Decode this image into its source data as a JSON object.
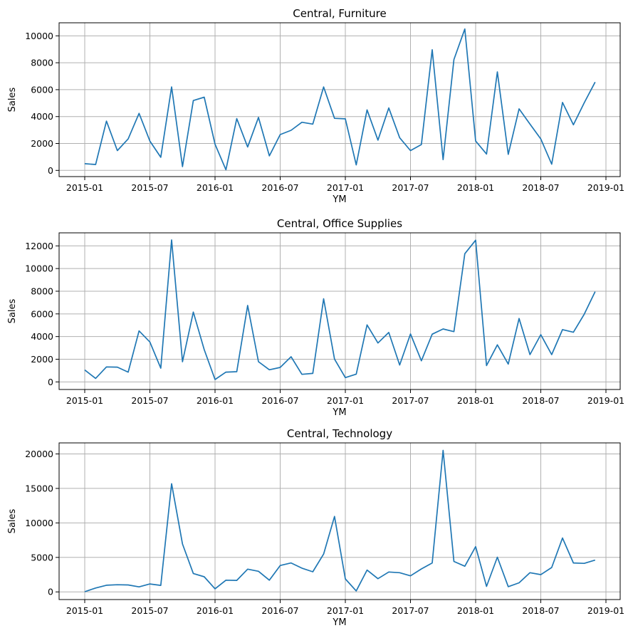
{
  "chart_data": [
    {
      "type": "line",
      "title": "Central, Furniture",
      "xlabel": "YM",
      "ylabel": "Sales",
      "grid": true,
      "line_color": "#1f77b4",
      "x_start": "2015-01",
      "x_end": "2018-12",
      "x_frequency": "monthly",
      "xticks": [
        "2015-01",
        "2015-07",
        "2016-01",
        "2016-07",
        "2017-01",
        "2017-07",
        "2018-01",
        "2018-07",
        "2019-01"
      ],
      "yticks": [
        0,
        2000,
        4000,
        6000,
        8000,
        10000
      ],
      "ylim": [
        -460,
        10970
      ],
      "values": [
        500,
        440,
        3660,
        1470,
        2340,
        4240,
        2180,
        975,
        6200,
        280,
        5190,
        5440,
        1950,
        50,
        3850,
        1740,
        3940,
        1080,
        2660,
        2980,
        3580,
        3440,
        6200,
        3870,
        3830,
        410,
        4500,
        2250,
        4640,
        2430,
        1470,
        1920,
        8970,
        800,
        8240,
        10510,
        2180,
        1220,
        7320,
        1190,
        4570,
        3440,
        2340,
        460,
        5050,
        3390,
        5020,
        6560
      ]
    },
    {
      "type": "line",
      "title": "Central, Office Supplies",
      "xlabel": "YM",
      "ylabel": "Sales",
      "grid": true,
      "line_color": "#1f77b4",
      "x_start": "2015-01",
      "x_end": "2018-12",
      "x_frequency": "monthly",
      "xticks": [
        "2015-01",
        "2015-07",
        "2016-01",
        "2016-07",
        "2017-01",
        "2017-07",
        "2018-01",
        "2018-07",
        "2019-01"
      ],
      "yticks": [
        0,
        2000,
        4000,
        6000,
        8000,
        10000,
        12000
      ],
      "ylim": [
        -670,
        13150
      ],
      "values": [
        1050,
        310,
        1320,
        1300,
        860,
        4500,
        3520,
        1210,
        12520,
        1780,
        6160,
        2850,
        210,
        860,
        900,
        6740,
        1780,
        1070,
        1280,
        2220,
        670,
        750,
        7330,
        2010,
        380,
        690,
        5030,
        3430,
        4360,
        1490,
        4230,
        1860,
        4210,
        4670,
        4440,
        11310,
        12500,
        1440,
        3270,
        1570,
        5590,
        2410,
        4170,
        2410,
        4610,
        4380,
        5970,
        7960
      ]
    },
    {
      "type": "line",
      "title": "Central, Technology",
      "xlabel": "YM",
      "ylabel": "Sales",
      "grid": true,
      "line_color": "#1f77b4",
      "x_start": "2015-01",
      "x_end": "2018-12",
      "x_frequency": "monthly",
      "xticks": [
        "2015-01",
        "2015-07",
        "2016-01",
        "2016-07",
        "2017-01",
        "2017-07",
        "2018-01",
        "2018-07",
        "2019-01"
      ],
      "yticks": [
        0,
        5000,
        10000,
        15000,
        20000
      ],
      "ylim": [
        -1110,
        21600
      ],
      "values": [
        30,
        560,
        970,
        1040,
        1010,
        730,
        1150,
        940,
        15690,
        6940,
        2670,
        2190,
        450,
        1700,
        1670,
        3300,
        2990,
        1700,
        3820,
        4200,
        3440,
        2920,
        5490,
        10940,
        1880,
        140,
        3160,
        1910,
        2880,
        2780,
        2330,
        3330,
        4200,
        20520,
        4410,
        3720,
        6560,
        800,
        5030,
        760,
        1320,
        2780,
        2500,
        3540,
        7810,
        4200,
        4130,
        4620
      ]
    }
  ]
}
